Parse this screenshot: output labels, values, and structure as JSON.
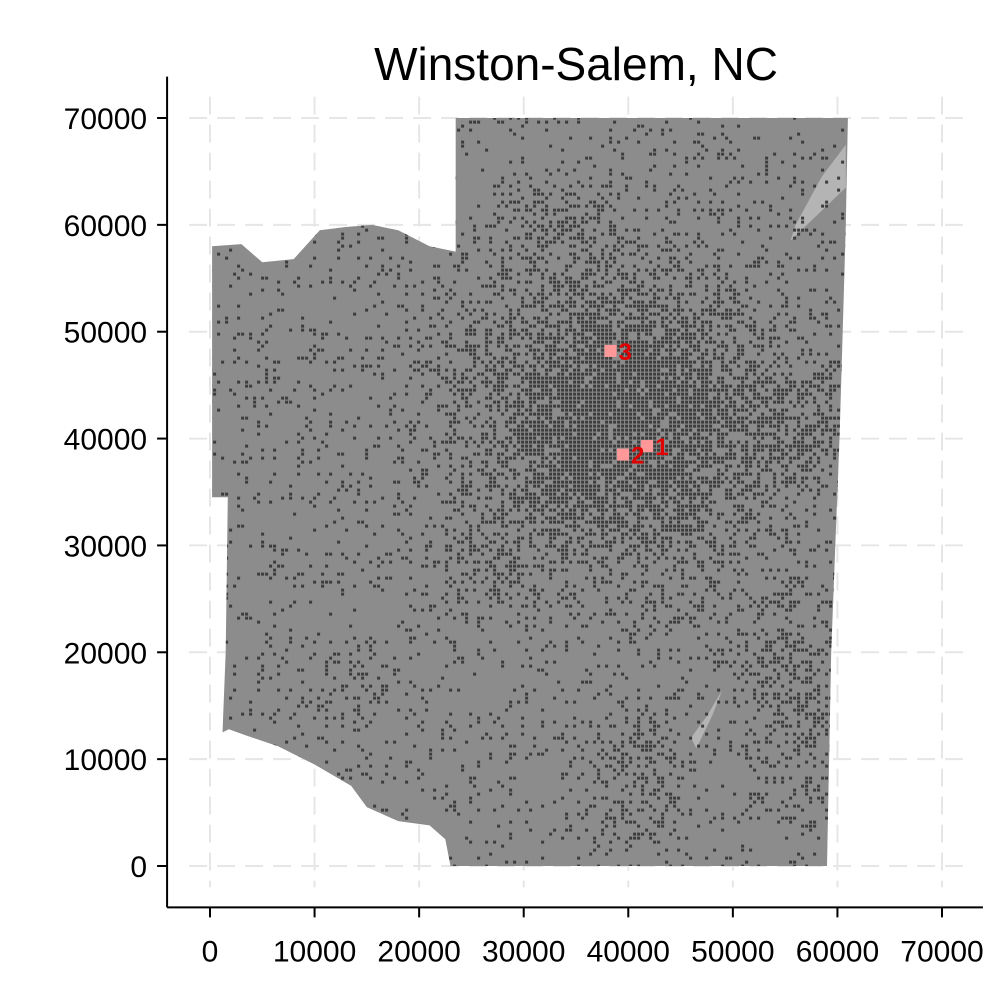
{
  "chart_data": {
    "type": "map",
    "title": "Winston-Salem, NC",
    "xlabel": "",
    "ylabel": "",
    "xlim": [
      -2000,
      72000
    ],
    "ylim": [
      -2000,
      72000
    ],
    "x_ticks": [
      0,
      10000,
      20000,
      30000,
      40000,
      50000,
      60000,
      70000
    ],
    "y_ticks": [
      0,
      10000,
      20000,
      30000,
      40000,
      50000,
      60000,
      70000
    ],
    "grid": true,
    "region_outline": [
      [
        23500,
        70000
      ],
      [
        61000,
        70000
      ],
      [
        60800,
        60000
      ],
      [
        60500,
        50000
      ],
      [
        60200,
        40000
      ],
      [
        59800,
        30000
      ],
      [
        59400,
        20000
      ],
      [
        59200,
        10000
      ],
      [
        59000,
        0
      ],
      [
        23000,
        0
      ],
      [
        22500,
        2500
      ],
      [
        21000,
        3800
      ],
      [
        18000,
        4200
      ],
      [
        15000,
        5500
      ],
      [
        13500,
        7500
      ],
      [
        10000,
        9500
      ],
      [
        6500,
        11200
      ],
      [
        3500,
        12200
      ],
      [
        1800,
        12800
      ],
      [
        1200,
        12500
      ],
      [
        1500,
        20000
      ],
      [
        1700,
        34500
      ],
      [
        200,
        34500
      ],
      [
        200,
        58000
      ],
      [
        3000,
        58200
      ],
      [
        5000,
        56500
      ],
      [
        8000,
        56800
      ],
      [
        10500,
        59500
      ],
      [
        13000,
        59800
      ],
      [
        15500,
        60000
      ],
      [
        18000,
        59500
      ],
      [
        21000,
        58000
      ],
      [
        23500,
        57500
      ]
    ],
    "lighter_patches": [
      [
        [
          55500,
          58500
        ],
        [
          60800,
          63500
        ],
        [
          60800,
          67500
        ],
        [
          58500,
          64500
        ],
        [
          56000,
          60000
        ]
      ],
      [
        [
          46500,
          11000
        ],
        [
          48000,
          14000
        ],
        [
          49000,
          16500
        ],
        [
          47500,
          14000
        ],
        [
          46000,
          12000
        ]
      ]
    ],
    "density_centers": [
      {
        "x": 39000,
        "y": 42000,
        "sx": 9000,
        "sy": 8500,
        "weight": 2.2
      },
      {
        "x": 33000,
        "y": 60000,
        "sx": 3500,
        "sy": 3000,
        "weight": 0.6
      },
      {
        "x": 56500,
        "y": 16000,
        "sx": 3500,
        "sy": 7000,
        "weight": 0.8
      },
      {
        "x": 40500,
        "y": 9000,
        "sx": 3000,
        "sy": 4000,
        "weight": 0.7
      },
      {
        "x": 26500,
        "y": 28000,
        "sx": 3000,
        "sy": 3000,
        "weight": 0.5
      },
      {
        "x": 13500,
        "y": 17000,
        "sx": 2500,
        "sy": 2500,
        "weight": 0.4
      },
      {
        "x": 57000,
        "y": 41000,
        "sx": 4000,
        "sy": 4000,
        "weight": 0.6
      },
      {
        "x": 5000,
        "y": 43500,
        "sx": 2000,
        "sy": 2000,
        "weight": 0.3
      }
    ],
    "markers": [
      {
        "label": "1",
        "x": 41800,
        "y": 39300
      },
      {
        "label": "2",
        "x": 39500,
        "y": 38500
      },
      {
        "label": "3",
        "x": 38300,
        "y": 48200
      }
    ],
    "colors": {
      "region": "#8c8c8c",
      "lighter": "#b4b4b4",
      "dense": "#3d3d3d",
      "marker_fill": "#ff9999",
      "marker_text": "#e00000"
    }
  }
}
